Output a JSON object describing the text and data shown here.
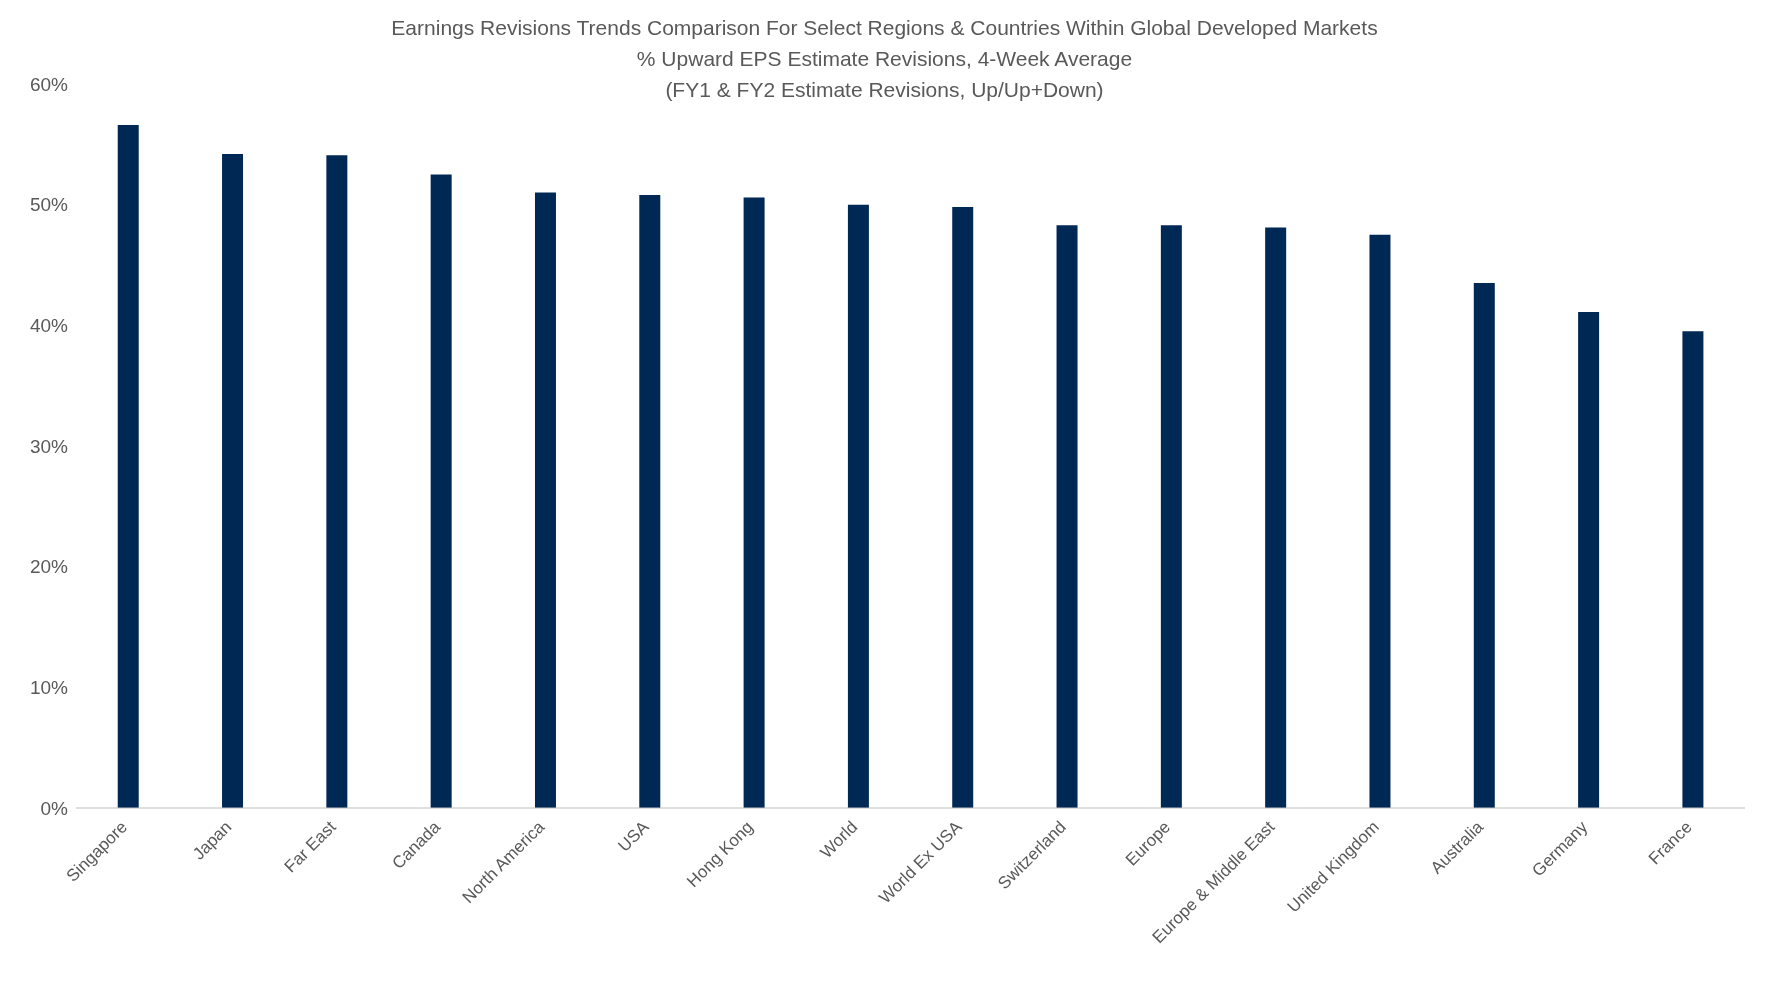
{
  "chart_data": {
    "type": "bar",
    "title": "Earnings Revisions Trends Comparison For Select Regions & Countries Within Global Developed Markets",
    "subtitle": "% Upward EPS Estimate Revisions, 4-Week Average\n(FY1 & FY2 Estimate Revisions, Up/Up+Down)",
    "categories": [
      "Singapore",
      "Japan",
      "Far East",
      "Canada",
      "North America",
      "USA",
      "Hong Kong",
      "World",
      "World Ex USA",
      "Switzerland",
      "Europe",
      "Europe & Middle East",
      "United Kingdom",
      "Australia",
      "Germany",
      "France"
    ],
    "values": [
      56.6,
      54.2,
      54.1,
      52.5,
      51.0,
      50.8,
      50.6,
      50.0,
      49.8,
      48.3,
      48.3,
      48.1,
      47.5,
      43.5,
      41.1,
      39.5
    ],
    "color": "#002855",
    "ylim": [
      0,
      60
    ],
    "yticks": [
      {
        "value": 0,
        "label": "0%"
      },
      {
        "value": 10,
        "label": "10%"
      },
      {
        "value": 20,
        "label": "20%"
      },
      {
        "value": 30,
        "label": "30%"
      },
      {
        "value": 40,
        "label": "40%"
      },
      {
        "value": 50,
        "label": "50%"
      },
      {
        "value": 60,
        "label": "60%"
      }
    ],
    "grid": false,
    "legend": false
  }
}
